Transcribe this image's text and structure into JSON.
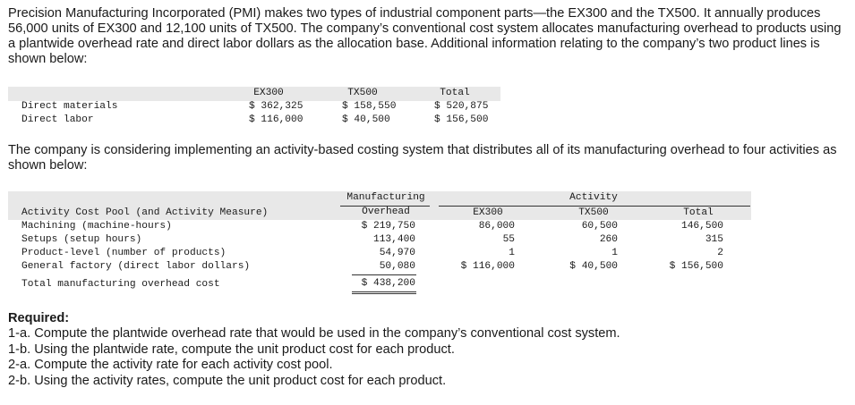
{
  "intro": "Precision Manufacturing Incorporated (PMI) makes two types of industrial component parts—the EX300 and the TX500. It annually produces 56,000 units of EX300 and 12,100 units of TX500. The company’s conventional cost system allocates manufacturing overhead to products using a plantwide overhead rate and direct labor dollars as the allocation base. Additional information relating to the company’s two product lines is shown below:",
  "table1": {
    "headers": [
      "EX300",
      "TX500",
      "Total"
    ],
    "rows": [
      {
        "label": "Direct materials",
        "ex300": "$ 362,325",
        "tx500": "$ 158,550",
        "total": "$ 520,875"
      },
      {
        "label": "Direct labor",
        "ex300": "$ 116,000",
        "tx500": "$ 40,500",
        "total": "$ 156,500"
      }
    ]
  },
  "middle": "The company is considering implementing an activity-based costing system that distributes all of its manufacturing overhead to four activities as shown below:",
  "table2": {
    "header_pool": "Activity Cost Pool (and Activity Measure)",
    "header_overhead_1": "Manufacturing",
    "header_overhead_2": "Overhead",
    "header_activity": "Activity",
    "header_ex300": "EX300",
    "header_tx500": "TX500",
    "header_total": "Total",
    "rows": [
      {
        "label": "Machining (machine-hours)",
        "overhead": "$ 219,750",
        "ex300": "86,000",
        "tx500": "60,500",
        "total": "146,500"
      },
      {
        "label": "Setups (setup hours)",
        "overhead": "113,400",
        "ex300": "55",
        "tx500": "260",
        "total": "315"
      },
      {
        "label": "Product-level (number of products)",
        "overhead": "54,970",
        "ex300": "1",
        "tx500": "1",
        "total": "2"
      },
      {
        "label": "General factory (direct labor dollars)",
        "overhead": "50,080",
        "ex300": "$ 116,000",
        "tx500": "$ 40,500",
        "total": "$ 156,500"
      }
    ],
    "total_label": "Total manufacturing overhead cost",
    "total_overhead": "$ 438,200"
  },
  "required": {
    "title": "Required:",
    "items": [
      "1-a. Compute the plantwide overhead rate that would be used in the company’s conventional cost system.",
      "1-b. Using the plantwide rate, compute the unit product cost for each product.",
      "2-a. Compute the activity rate for each activity cost pool.",
      "2-b. Using the activity rates, compute the unit product cost for each product."
    ]
  }
}
